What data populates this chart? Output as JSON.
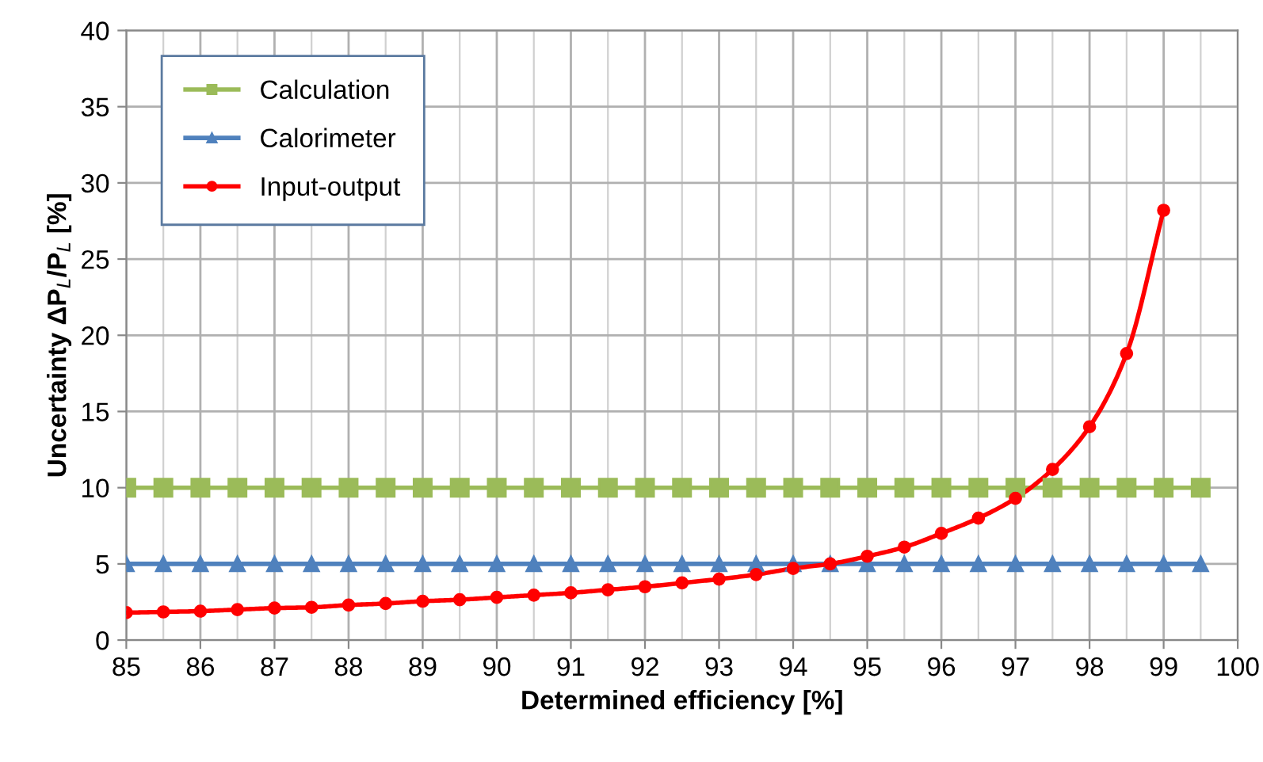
{
  "chart_data": {
    "type": "line",
    "xlabel": "Determined efficiency [%]",
    "ylabel": "Uncertainty ΔP$_{L}$/P$_{L}$ [%]",
    "xlim": [
      85,
      100
    ],
    "xticks": [
      85,
      86,
      87,
      88,
      89,
      90,
      91,
      92,
      93,
      94,
      95,
      96,
      97,
      98,
      99,
      100
    ],
    "ylim": [
      0,
      40
    ],
    "yticks": [
      0,
      5,
      10,
      15,
      20,
      25,
      30,
      35,
      40
    ],
    "grid": true,
    "legend": "top left",
    "series": [
      {
        "name": "Calculation",
        "color": "#9bbb59",
        "marker": "square",
        "x": [
          85,
          85.5,
          86,
          86.5,
          87,
          87.5,
          88,
          88.5,
          89,
          89.5,
          90,
          90.5,
          91,
          91.5,
          92,
          92.5,
          93,
          93.5,
          94,
          94.5,
          95,
          95.5,
          96,
          96.5,
          97,
          97.5,
          98,
          98.5,
          99,
          99.5
        ],
        "values": [
          10,
          10,
          10,
          10,
          10,
          10,
          10,
          10,
          10,
          10,
          10,
          10,
          10,
          10,
          10,
          10,
          10,
          10,
          10,
          10,
          10,
          10,
          10,
          10,
          10,
          10,
          10,
          10,
          10,
          10
        ]
      },
      {
        "name": "Calorimeter",
        "color": "#4f81bd",
        "marker": "triangle",
        "x": [
          85,
          85.5,
          86,
          86.5,
          87,
          87.5,
          88,
          88.5,
          89,
          89.5,
          90,
          90.5,
          91,
          91.5,
          92,
          92.5,
          93,
          93.5,
          94,
          94.5,
          95,
          95.5,
          96,
          96.5,
          97,
          97.5,
          98,
          98.5,
          99,
          99.5
        ],
        "values": [
          5,
          5,
          5,
          5,
          5,
          5,
          5,
          5,
          5,
          5,
          5,
          5,
          5,
          5,
          5,
          5,
          5,
          5,
          5,
          5,
          5,
          5,
          5,
          5,
          5,
          5,
          5,
          5,
          5,
          5
        ]
      },
      {
        "name": "Input-output",
        "color": "#ff0000",
        "marker": "circle",
        "x": [
          85,
          85.5,
          86,
          86.5,
          87,
          87.5,
          88,
          88.5,
          89,
          89.5,
          90,
          90.5,
          91,
          91.5,
          92,
          92.5,
          93,
          93.5,
          94,
          94.5,
          95,
          95.5,
          96,
          96.5,
          97,
          97.5,
          98,
          98.5,
          99
        ],
        "values": [
          1.8,
          1.85,
          1.9,
          2.0,
          2.1,
          2.15,
          2.3,
          2.4,
          2.55,
          2.65,
          2.8,
          2.95,
          3.1,
          3.3,
          3.5,
          3.75,
          4.0,
          4.3,
          4.7,
          5.0,
          5.5,
          6.1,
          7.0,
          8.0,
          9.3,
          11.2,
          14.0,
          18.8,
          28.2
        ]
      }
    ]
  }
}
